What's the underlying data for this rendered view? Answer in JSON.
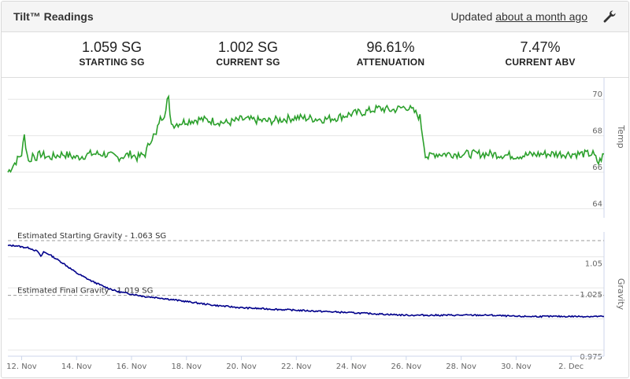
{
  "header": {
    "title": "Tilt™ Readings",
    "updated_prefix": "Updated",
    "updated_link": "about a month ago"
  },
  "stats": [
    {
      "value": "1.059 SG",
      "label": "STARTING SG"
    },
    {
      "value": "1.002 SG",
      "label": "CURRENT SG"
    },
    {
      "value": "96.61%",
      "label": "ATTENUATION"
    },
    {
      "value": "7.47%",
      "label": "CURRENT ABV"
    }
  ],
  "colors": {
    "temp": "#2ca02c",
    "gravity": "#00008b",
    "reference": "#999999"
  },
  "chart_data": [
    {
      "type": "line",
      "ylabel": "Temp",
      "y_ticks": [
        "64",
        "66",
        "68",
        "70"
      ],
      "ylim": [
        63.5,
        71
      ],
      "x_ticks": [
        "12. Nov",
        "14. Nov",
        "16. Nov",
        "18. Nov",
        "20. Nov",
        "22. Nov",
        "24. Nov",
        "26. Nov",
        "28. Nov",
        "30. Nov",
        "2. Dec"
      ],
      "series": [
        {
          "x": [
            11.5,
            11.6,
            11.8,
            12.0,
            12.1,
            12.2,
            12.3,
            12.4,
            12.5,
            12.7,
            13.0,
            13.5,
            14.0,
            14.5,
            15.0,
            15.5,
            16.0,
            16.2,
            16.5,
            16.7,
            16.8,
            16.9,
            17.0,
            17.1,
            17.2,
            17.3,
            17.35,
            17.4,
            17.5,
            18.0,
            18.5,
            19.0,
            19.5,
            20.0,
            21.0,
            22.0,
            23.0,
            23.5,
            24.0,
            24.5,
            25.0,
            25.5,
            26.0,
            26.3,
            26.5,
            26.6,
            26.7,
            26.8,
            27.0,
            28.0,
            29.0,
            30.0,
            31.0,
            32.0,
            32.8,
            33.0,
            33.2
          ],
          "y": [
            66.0,
            66.2,
            66.6,
            67.0,
            68.0,
            67.0,
            66.5,
            67.0,
            66.8,
            67.0,
            66.8,
            67.0,
            66.8,
            67.0,
            67.0,
            66.8,
            67.0,
            66.8,
            67.0,
            67.8,
            68.0,
            68.0,
            68.8,
            69.0,
            69.2,
            70.0,
            70.0,
            69.0,
            68.6,
            68.8,
            68.9,
            68.8,
            68.7,
            68.9,
            68.8,
            69.0,
            68.9,
            69.0,
            69.2,
            69.3,
            69.5,
            69.4,
            69.6,
            69.3,
            69.0,
            68.0,
            67.0,
            66.8,
            67.0,
            67.0,
            67.0,
            66.9,
            67.0,
            67.0,
            67.0,
            66.5,
            67.0
          ]
        }
      ]
    },
    {
      "type": "line",
      "ylabel": "Gravity",
      "y_ticks": [
        "0.975",
        "1.025",
        "1.05"
      ],
      "ylim": [
        0.97,
        1.07
      ],
      "annotations": [
        {
          "label": "Estimated Starting Gravity - 1.063 SG",
          "y": 1.063
        },
        {
          "label": "Estimated Final Gravity - 1.019 SG",
          "y": 1.019
        }
      ],
      "series": [
        {
          "x": [
            11.5,
            11.8,
            12.0,
            12.3,
            12.6,
            12.7,
            12.8,
            13.0,
            13.5,
            14.0,
            14.5,
            15.0,
            15.5,
            16.0,
            16.5,
            17.0,
            18.0,
            19.0,
            20.0,
            21.0,
            22.0,
            23.0,
            24.0,
            25.0,
            26.0,
            27.0,
            28.0,
            29.0,
            30.0,
            31.0,
            32.0,
            33.2
          ],
          "y": [
            1.059,
            1.059,
            1.058,
            1.057,
            1.054,
            1.05,
            1.054,
            1.052,
            1.045,
            1.037,
            1.031,
            1.026,
            1.022,
            1.02,
            1.018,
            1.017,
            1.014,
            1.011,
            1.009,
            1.008,
            1.007,
            1.006,
            1.005,
            1.004,
            1.003,
            1.003,
            1.003,
            1.003,
            1.002,
            1.002,
            1.002,
            1.002
          ]
        }
      ]
    }
  ]
}
